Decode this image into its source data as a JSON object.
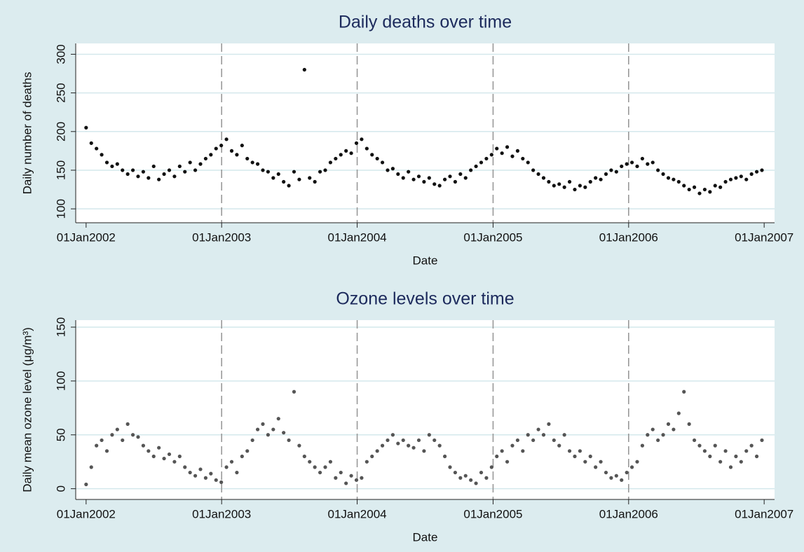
{
  "chart_data": [
    {
      "type": "scatter",
      "title": "Daily deaths over time",
      "xlabel": "Date",
      "ylabel": "Daily number of deaths",
      "color": "#111111",
      "grid": true,
      "xlines": true,
      "xlim": [
        15313,
        17195
      ],
      "xticks": [
        {
          "value": 15341,
          "label": "01Jan2002"
        },
        {
          "value": 15706,
          "label": "01Jan2003"
        },
        {
          "value": 16071,
          "label": "01Jan2004"
        },
        {
          "value": 16437,
          "label": "01Jan2005"
        },
        {
          "value": 16802,
          "label": "01Jan2006"
        },
        {
          "value": 17167,
          "label": "01Jan2007"
        }
      ],
      "ylim": [
        82,
        314
      ],
      "yticks": [
        100,
        150,
        200,
        250,
        300
      ],
      "x": [
        15341,
        15355,
        15369,
        15383,
        15397,
        15411,
        15425,
        15439,
        15453,
        15467,
        15481,
        15495,
        15509,
        15523,
        15537,
        15551,
        15565,
        15579,
        15593,
        15607,
        15621,
        15635,
        15649,
        15663,
        15677,
        15691,
        15705,
        15719,
        15733,
        15747,
        15761,
        15775,
        15789,
        15803,
        15817,
        15831,
        15845,
        15859,
        15873,
        15887,
        15901,
        15915,
        15929,
        15943,
        15957,
        15971,
        15985,
        15999,
        16013,
        16027,
        16041,
        16055,
        16069,
        16083,
        16097,
        16111,
        16125,
        16139,
        16153,
        16167,
        16181,
        16195,
        16209,
        16223,
        16237,
        16251,
        16265,
        16279,
        16293,
        16307,
        16321,
        16335,
        16349,
        16363,
        16377,
        16391,
        16405,
        16419,
        16433,
        16447,
        16461,
        16475,
        16489,
        16503,
        16517,
        16531,
        16545,
        16559,
        16573,
        16587,
        16601,
        16615,
        16629,
        16643,
        16657,
        16671,
        16685,
        16699,
        16713,
        16727,
        16741,
        16755,
        16769,
        16783,
        16797,
        16811,
        16825,
        16839,
        16853,
        16867,
        16881,
        16895,
        16909,
        16923,
        16937,
        16951,
        16965,
        16979,
        16993,
        17007,
        17021,
        17035,
        17049,
        17063,
        17077,
        17091,
        17105,
        17119,
        17133,
        17147,
        17161
      ],
      "values": [
        205,
        185,
        178,
        170,
        160,
        155,
        158,
        150,
        145,
        150,
        142,
        148,
        140,
        155,
        138,
        145,
        150,
        142,
        155,
        148,
        160,
        150,
        158,
        165,
        170,
        178,
        182,
        190,
        175,
        170,
        182,
        165,
        160,
        158,
        150,
        148,
        140,
        145,
        135,
        130,
        148,
        138,
        280,
        140,
        135,
        148,
        150,
        160,
        165,
        170,
        175,
        172,
        185,
        190,
        178,
        170,
        165,
        160,
        150,
        152,
        145,
        140,
        148,
        138,
        142,
        135,
        140,
        132,
        130,
        138,
        142,
        135,
        145,
        140,
        150,
        155,
        160,
        165,
        170,
        178,
        172,
        180,
        168,
        175,
        165,
        160,
        150,
        145,
        140,
        135,
        130,
        132,
        128,
        135,
        125,
        130,
        128,
        135,
        140,
        138,
        145,
        150,
        148,
        155,
        158,
        160,
        155,
        165,
        158,
        160,
        150,
        145,
        140,
        138,
        135,
        130,
        125,
        128,
        120,
        125,
        122,
        130,
        128,
        135,
        138,
        140,
        142,
        138,
        145,
        148,
        150
      ]
    },
    {
      "type": "scatter",
      "title": "Ozone levels over time",
      "xlabel": "Date",
      "ylabel": "Daily mean ozone level (μg/m³)",
      "color": "#555555",
      "grid": true,
      "xlines": true,
      "xlim": [
        15313,
        17195
      ],
      "xticks": [
        {
          "value": 15341,
          "label": "01Jan2002"
        },
        {
          "value": 15706,
          "label": "01Jan2003"
        },
        {
          "value": 16071,
          "label": "01Jan2004"
        },
        {
          "value": 16437,
          "label": "01Jan2005"
        },
        {
          "value": 16802,
          "label": "01Jan2006"
        },
        {
          "value": 17167,
          "label": "01Jan2007"
        }
      ],
      "ylim": [
        -10,
        156.5
      ],
      "yticks": [
        0,
        50,
        100,
        150
      ],
      "x": [
        15341,
        15355,
        15369,
        15383,
        15397,
        15411,
        15425,
        15439,
        15453,
        15467,
        15481,
        15495,
        15509,
        15523,
        15537,
        15551,
        15565,
        15579,
        15593,
        15607,
        15621,
        15635,
        15649,
        15663,
        15677,
        15691,
        15705,
        15719,
        15733,
        15747,
        15761,
        15775,
        15789,
        15803,
        15817,
        15831,
        15845,
        15859,
        15873,
        15887,
        15901,
        15915,
        15929,
        15943,
        15957,
        15971,
        15985,
        15999,
        16013,
        16027,
        16041,
        16055,
        16069,
        16083,
        16097,
        16111,
        16125,
        16139,
        16153,
        16167,
        16181,
        16195,
        16209,
        16223,
        16237,
        16251,
        16265,
        16279,
        16293,
        16307,
        16321,
        16335,
        16349,
        16363,
        16377,
        16391,
        16405,
        16419,
        16433,
        16447,
        16461,
        16475,
        16489,
        16503,
        16517,
        16531,
        16545,
        16559,
        16573,
        16587,
        16601,
        16615,
        16629,
        16643,
        16657,
        16671,
        16685,
        16699,
        16713,
        16727,
        16741,
        16755,
        16769,
        16783,
        16797,
        16811,
        16825,
        16839,
        16853,
        16867,
        16881,
        16895,
        16909,
        16923,
        16937,
        16951,
        16965,
        16979,
        16993,
        17007,
        17021,
        17035,
        17049,
        17063,
        17077,
        17091,
        17105,
        17119,
        17133,
        17147,
        17161
      ],
      "values": [
        4,
        20,
        40,
        45,
        35,
        50,
        55,
        45,
        60,
        50,
        48,
        40,
        35,
        30,
        38,
        28,
        32,
        25,
        30,
        20,
        15,
        12,
        18,
        10,
        14,
        8,
        6,
        20,
        25,
        15,
        30,
        35,
        45,
        55,
        60,
        50,
        55,
        65,
        52,
        45,
        90,
        40,
        30,
        25,
        20,
        15,
        20,
        25,
        10,
        15,
        5,
        12,
        8,
        10,
        25,
        30,
        35,
        40,
        45,
        50,
        42,
        45,
        40,
        38,
        45,
        35,
        50,
        45,
        40,
        30,
        20,
        15,
        10,
        12,
        8,
        5,
        15,
        10,
        20,
        30,
        35,
        25,
        40,
        45,
        35,
        50,
        45,
        55,
        50,
        60,
        45,
        40,
        50,
        35,
        30,
        35,
        25,
        30,
        20,
        25,
        15,
        10,
        12,
        8,
        15,
        20,
        25,
        40,
        50,
        55,
        45,
        50,
        60,
        55,
        70,
        90,
        60,
        45,
        40,
        35,
        30,
        40,
        25,
        35,
        20,
        30,
        25,
        35,
        40,
        30,
        45
      ]
    }
  ]
}
